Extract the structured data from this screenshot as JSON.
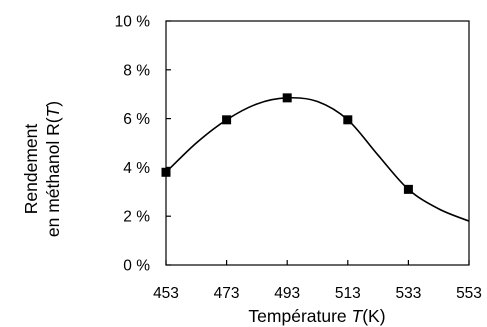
{
  "chart_data": {
    "type": "line",
    "title": "",
    "xlabel_prefix": "Température ",
    "xlabel_var": "T",
    "xlabel_suffix": "(K)",
    "ylabel_line1": "Rendement",
    "ylabel_line2_prefix": "en méthanol R(",
    "ylabel_line2_var": "T",
    "ylabel_line2_suffix": ")",
    "xlim": [
      453,
      553
    ],
    "ylim": [
      0,
      10
    ],
    "x_ticks": [
      453,
      473,
      493,
      513,
      533,
      553
    ],
    "x_tick_labels": [
      "453",
      "473",
      "493",
      "513",
      "533",
      "553"
    ],
    "y_ticks": [
      0,
      2,
      4,
      6,
      8,
      10
    ],
    "y_tick_labels": [
      "0 %",
      "2 %",
      "4 %",
      "6 %",
      "8 %",
      "10 %"
    ],
    "grid": false,
    "legend": "none",
    "series": [
      {
        "markers": {
          "x": [
            453,
            473,
            493,
            513,
            533
          ],
          "y": [
            3.8,
            5.95,
            6.85,
            5.95,
            3.1
          ]
        },
        "curve": {
          "x": [
            453,
            463,
            473,
            483,
            493,
            503,
            513,
            523,
            533,
            543,
            553
          ],
          "y": [
            3.8,
            5.0,
            5.95,
            6.6,
            6.85,
            6.7,
            5.95,
            4.5,
            3.1,
            2.3,
            1.8
          ]
        }
      }
    ],
    "line_color": "#000000",
    "marker_color": "#000000"
  }
}
